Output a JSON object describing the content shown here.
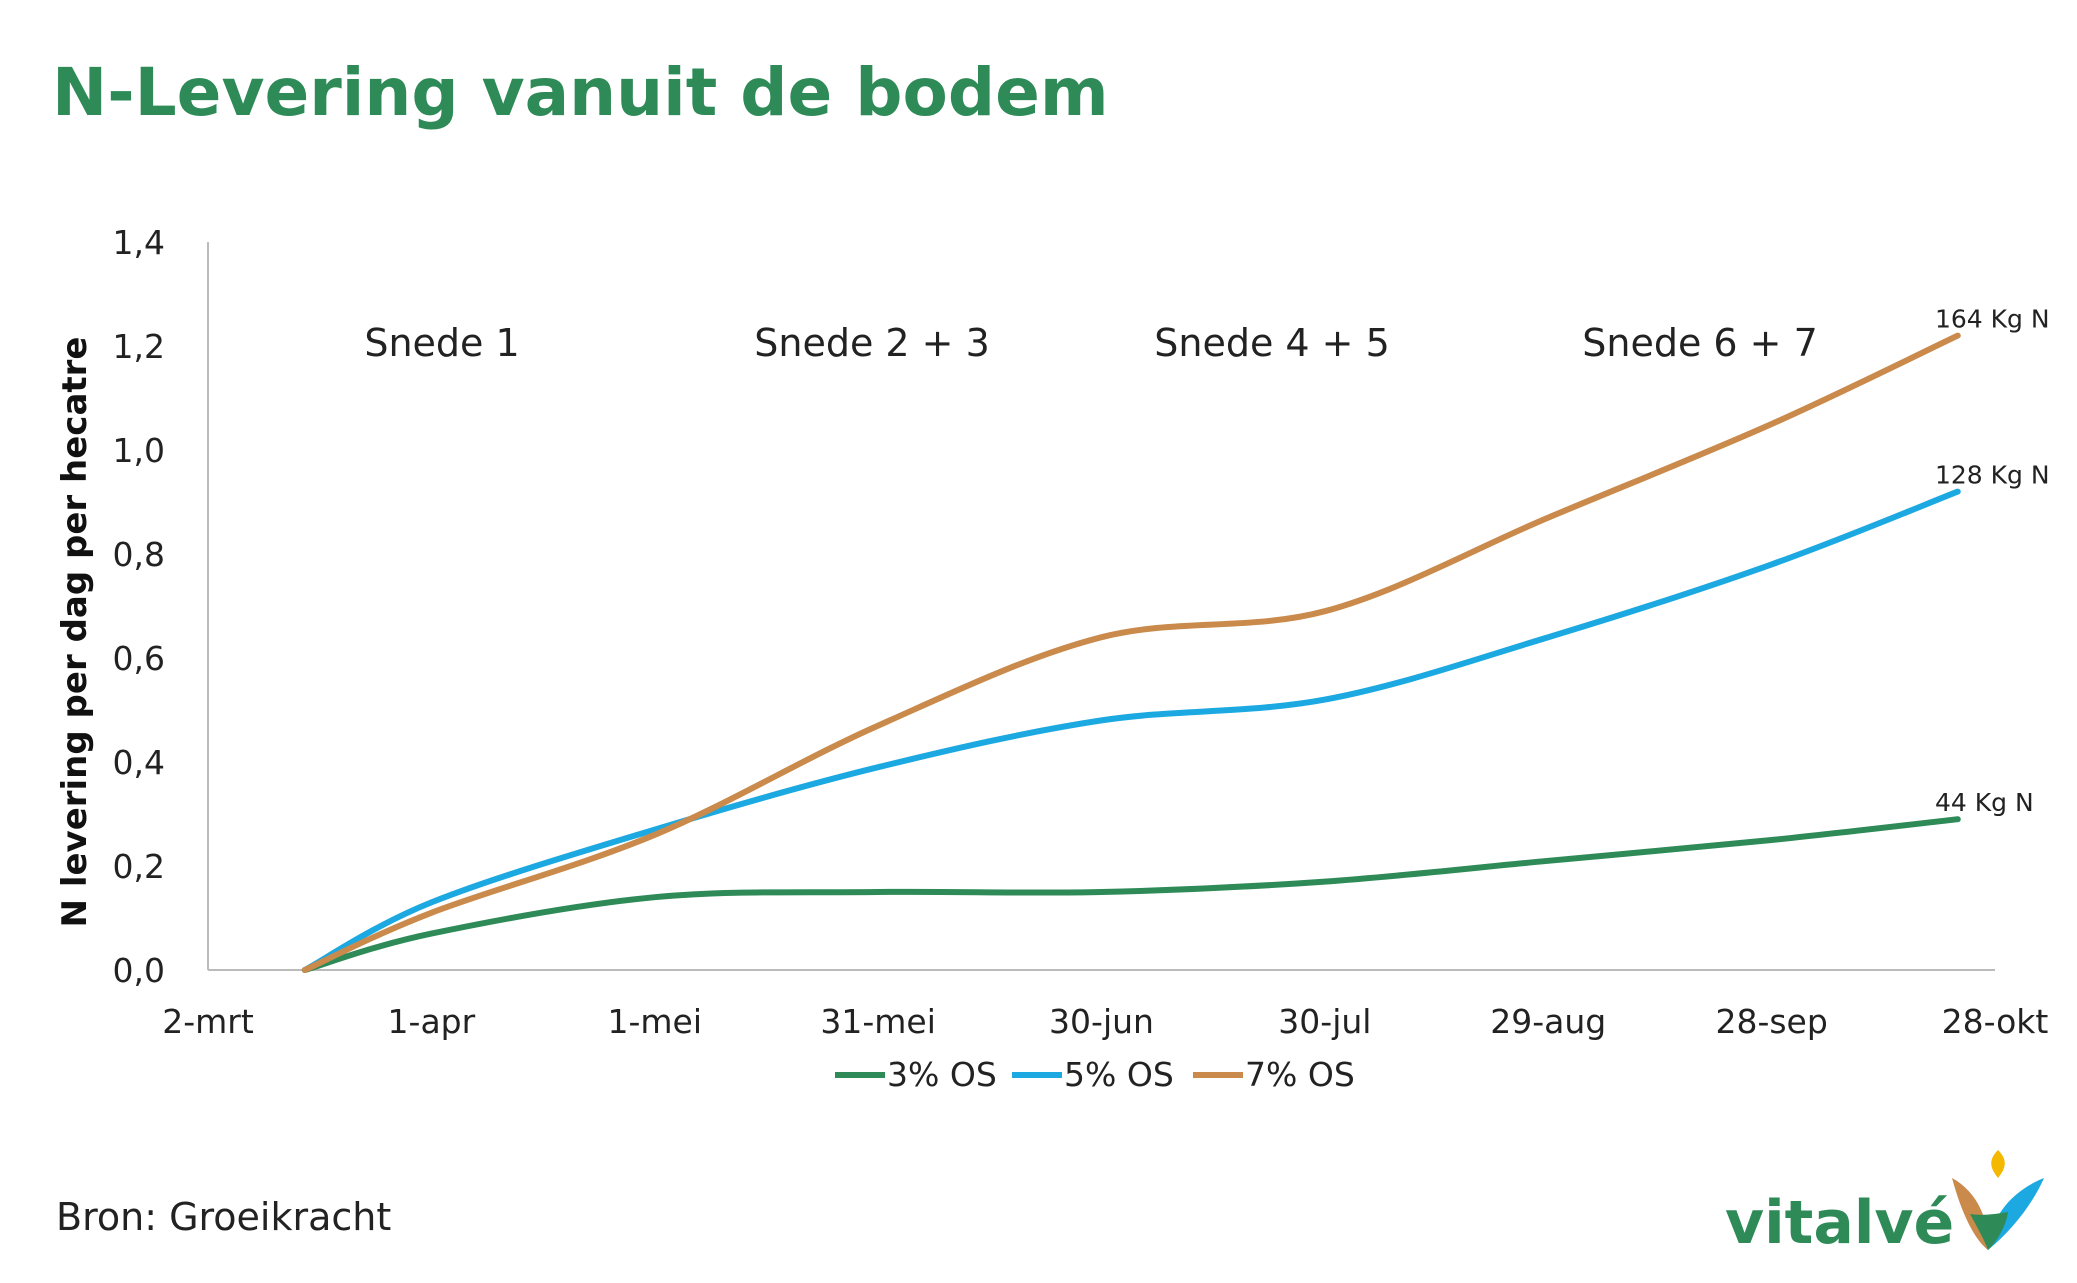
{
  "title": "N-Levering vanuit de bodem",
  "source": "Bron: Groeikracht",
  "brand": "vitalvé",
  "colors": {
    "title": "#2e8b57",
    "s3": "#2e8b57",
    "s5": "#1ca9e1",
    "s7": "#c98a4b",
    "axis": "#bbbbbb"
  },
  "chart_data": {
    "type": "line",
    "ylabel": "N levering per dag per hecatre",
    "xlabel": "",
    "ylim": [
      0,
      1.4
    ],
    "y_ticks": [
      "0,0",
      "0,2",
      "0,4",
      "0,6",
      "0,8",
      "1,0",
      "1,2",
      "1,4"
    ],
    "x_ticks": [
      "2-mrt",
      "1-apr",
      "1-mei",
      "31-mei",
      "30-jun",
      "30-jul",
      "29-aug",
      "28-sep",
      "28-okt"
    ],
    "x": [
      "15-mrt",
      "1-apr",
      "1-mei",
      "31-mei",
      "30-jun",
      "30-jul",
      "29-aug",
      "28-sep",
      "23-okt"
    ],
    "grid": false,
    "legend_position": "bottom",
    "period_labels": [
      "Snede 1",
      "Snede 2 + 3",
      "Snede 4 + 5",
      "Snede 6 + 7"
    ],
    "series": [
      {
        "name": "3% OS",
        "color": "#2e8b57",
        "values": [
          0.0,
          0.07,
          0.14,
          0.15,
          0.15,
          0.17,
          0.21,
          0.25,
          0.29
        ],
        "end_label": "44 Kg N"
      },
      {
        "name": "5% OS",
        "color": "#1ca9e1",
        "values": [
          0.0,
          0.13,
          0.27,
          0.39,
          0.48,
          0.52,
          0.64,
          0.78,
          0.92
        ],
        "end_label": "128 Kg N"
      },
      {
        "name": "7% OS",
        "color": "#c98a4b",
        "values": [
          0.0,
          0.11,
          0.26,
          0.47,
          0.64,
          0.69,
          0.87,
          1.05,
          1.22
        ],
        "end_label": "164 Kg N"
      }
    ]
  }
}
